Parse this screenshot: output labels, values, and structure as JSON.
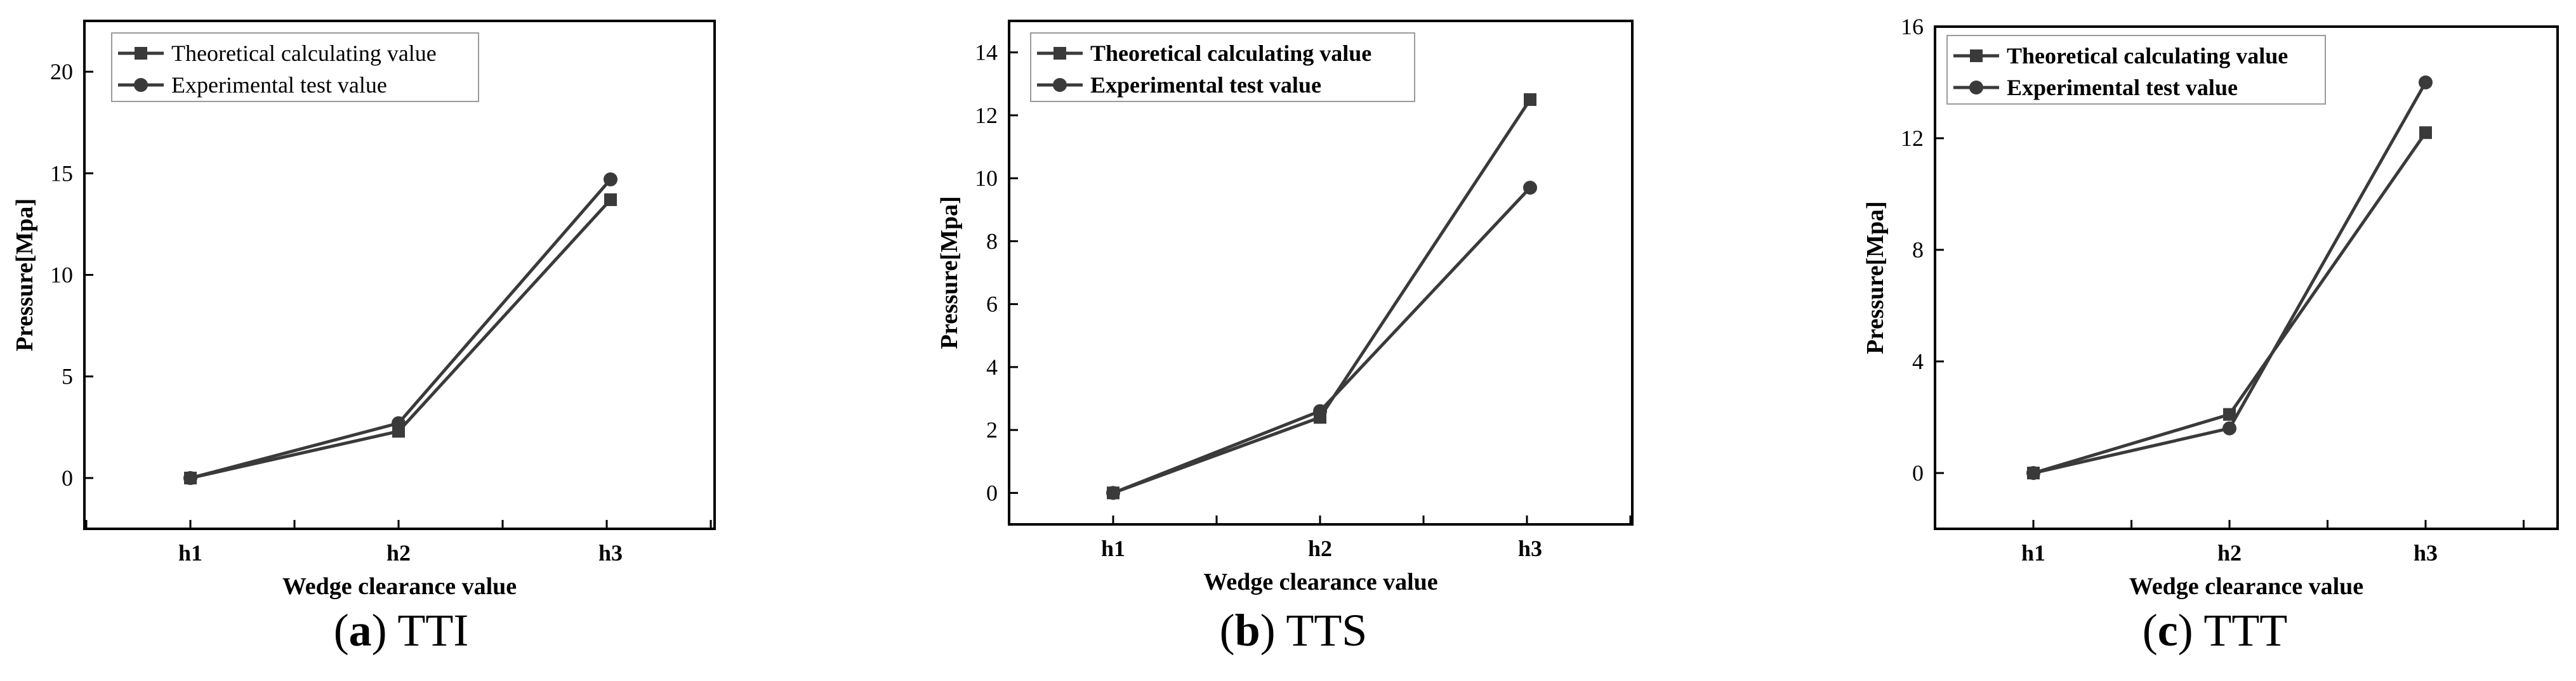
{
  "colors": {
    "line": "#3a3a3a",
    "axis": "#000000",
    "background": "#ffffff"
  },
  "chart_data": [
    {
      "type": "line",
      "panel_letter": "a",
      "panel_name": "TTI",
      "xlabel": "Wedge clearance value",
      "ylabel": "Pressure[Mpa]",
      "categories": [
        "h1",
        "h2",
        "h3"
      ],
      "ylim": [
        -2.5,
        22.5
      ],
      "yticks": [
        0,
        5,
        10,
        15,
        20
      ],
      "ytick_labels": [
        "0",
        "5",
        "10",
        "15",
        "20"
      ],
      "bold_legend": false,
      "legend_position": "top-left",
      "series": [
        {
          "name": "Theoretical calculating value",
          "marker": "square",
          "values": [
            0.0,
            2.3,
            13.7
          ]
        },
        {
          "name": "Experimental test value",
          "marker": "circle",
          "values": [
            0.0,
            2.7,
            14.7
          ]
        }
      ]
    },
    {
      "type": "line",
      "panel_letter": "b",
      "panel_name": "TTS",
      "xlabel": "Wedge clearance value",
      "ylabel": "Pressure[Mpa]",
      "categories": [
        "h1",
        "h2",
        "h3"
      ],
      "ylim": [
        -1,
        15
      ],
      "yticks": [
        0,
        2,
        4,
        6,
        8,
        10,
        12,
        14
      ],
      "ytick_labels": [
        "0",
        "2",
        "4",
        "6",
        "8",
        "10",
        "12",
        "14"
      ],
      "bold_legend": true,
      "legend_position": "top-left",
      "series": [
        {
          "name": "Theoretical calculating value",
          "marker": "square",
          "values": [
            0.0,
            2.4,
            12.5
          ]
        },
        {
          "name": "Experimental test value",
          "marker": "circle",
          "values": [
            0.0,
            2.6,
            9.7
          ]
        }
      ]
    },
    {
      "type": "line",
      "panel_letter": "c",
      "panel_name": "TTT",
      "xlabel": "Wedge clearance value",
      "ylabel": "Pressure[Mpa]",
      "categories": [
        "h1",
        "h2",
        "h3"
      ],
      "ylim": [
        -2,
        16
      ],
      "yticks": [
        0,
        4,
        8,
        12,
        16
      ],
      "ytick_labels": [
        "0",
        "4",
        "8",
        "12",
        "16"
      ],
      "bold_legend": true,
      "legend_position": "top-left",
      "series": [
        {
          "name": "Theoretical calculating value",
          "marker": "square",
          "values": [
            0.0,
            2.1,
            12.2
          ]
        },
        {
          "name": "Experimental test value",
          "marker": "circle",
          "values": [
            0.0,
            1.6,
            14.0
          ]
        }
      ]
    }
  ]
}
